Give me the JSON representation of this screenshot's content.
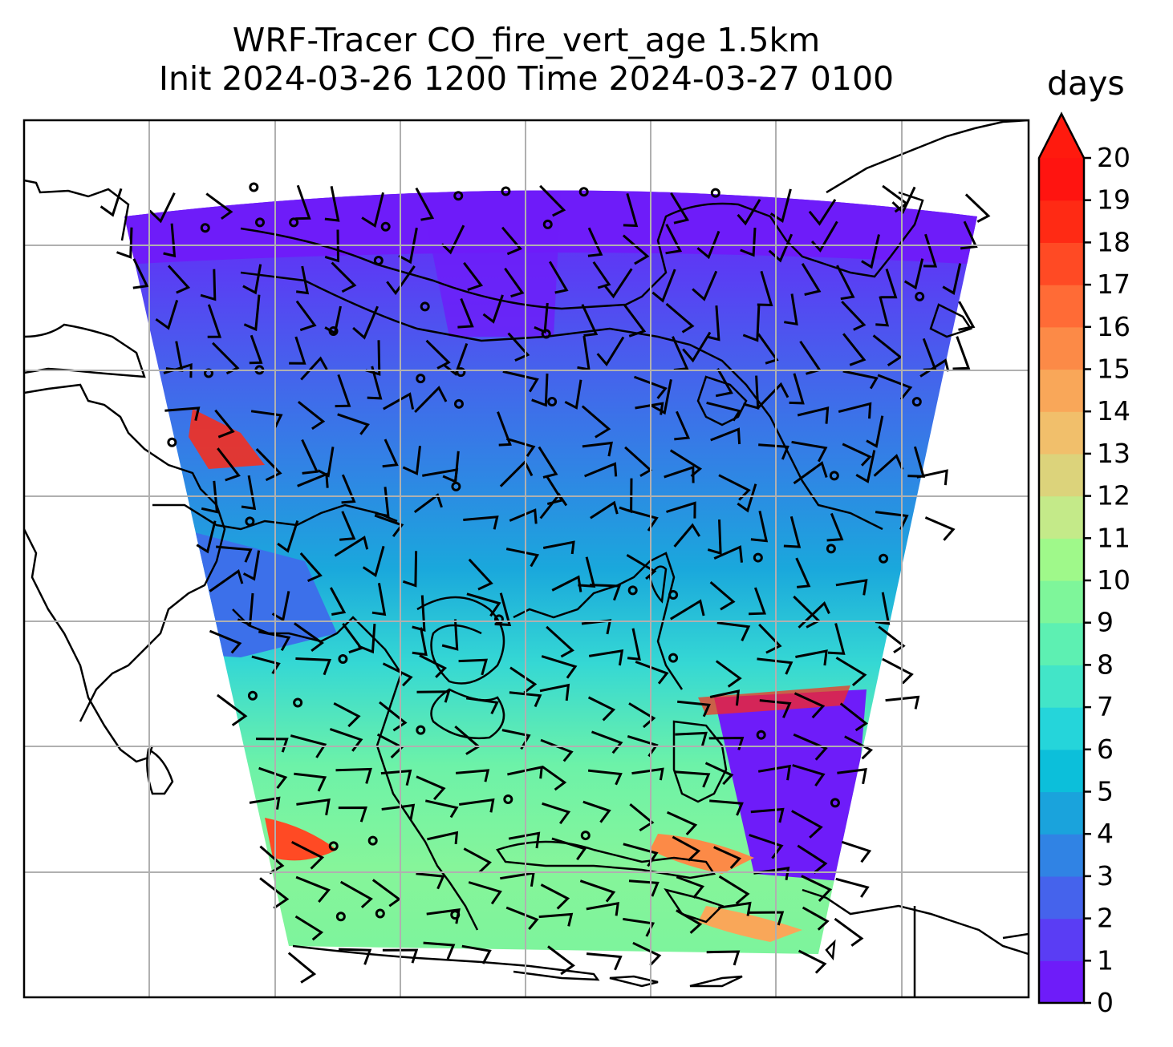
{
  "title": {
    "line1": "WRF-Tracer CO_fire_vert_age 1.5km",
    "line2": "Init 2024-03-26 1200 Time 2024-03-27 0100"
  },
  "colorbar": {
    "label": "days",
    "extend": "max",
    "ticks": [
      "0",
      "1",
      "2",
      "3",
      "4",
      "5",
      "6",
      "7",
      "8",
      "9",
      "10",
      "11",
      "12",
      "13",
      "14",
      "15",
      "16",
      "17",
      "18",
      "19",
      "20"
    ],
    "colors": [
      "#6e1cf9",
      "#5a3df4",
      "#4563ec",
      "#3083e4",
      "#1aa3dc",
      "#0cbfda",
      "#25d5da",
      "#42e5c8",
      "#5df0b2",
      "#7ef69a",
      "#9ff98a",
      "#c4ea89",
      "#dcd37b",
      "#f1bf6b",
      "#f9a759",
      "#fc8a47",
      "#ff6b36",
      "#ff4a24",
      "#ff2a14",
      "#ff1410"
    ],
    "over_color": "#ff1a0e"
  },
  "chart_data": {
    "type": "heatmap",
    "title": "WRF-Tracer CO_fire_vert_age 1.5km\nInit 2024-03-26 1200 Time 2024-03-27 0100",
    "variable": "CO_fire_vert_age",
    "level": "1.5km",
    "init_time": "2024-03-26 1200",
    "valid_time": "2024-03-27 0100",
    "units": "days",
    "colorbar_range": [
      0,
      20
    ],
    "colorbar_levels": [
      0,
      1,
      2,
      3,
      4,
      5,
      6,
      7,
      8,
      9,
      10,
      11,
      12,
      13,
      14,
      15,
      16,
      17,
      18,
      19,
      20
    ],
    "colorbar_extend": "max",
    "grid": true,
    "overlays": [
      "coastlines",
      "wind barbs"
    ],
    "regions": [
      {
        "area": "north (top band)",
        "approx_days": 1.5
      },
      {
        "area": "upper middle",
        "approx_days": 3
      },
      {
        "area": "central",
        "approx_days": 5.5
      },
      {
        "area": "south-central",
        "approx_days": 9
      },
      {
        "area": "southeast strip",
        "approx_days": 1
      },
      {
        "area": "southwest edge patch",
        "approx_days": 18
      }
    ]
  }
}
